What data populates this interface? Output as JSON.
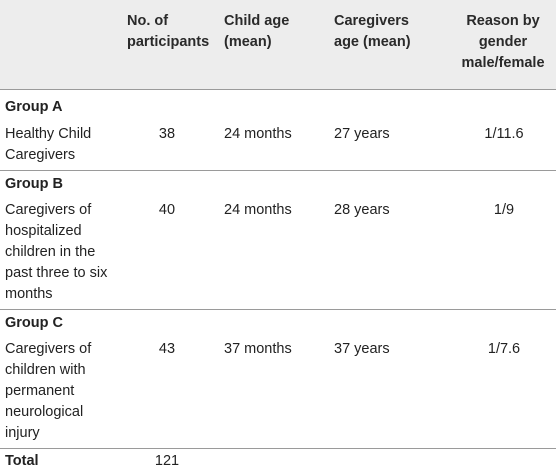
{
  "headers": {
    "participants": "No. of participants",
    "child_age": "Child age (mean)",
    "caregiver_age": "Caregivers age (mean)",
    "ratio": "Reason by gender male/female"
  },
  "groups": [
    {
      "name": "Group A",
      "description": "Healthy Child Caregivers",
      "participants": "38",
      "child_age": "24 months",
      "caregiver_age": "27 years",
      "ratio": "1/11.6"
    },
    {
      "name": "Group B",
      "description": "Caregivers of hospitalized children in the past three to six months",
      "participants": "40",
      "child_age": "24 months",
      "caregiver_age": "28 years",
      "ratio": "1/9"
    },
    {
      "name": "Group C",
      "description": "Caregivers of children with permanent neurological injury",
      "participants": "43",
      "child_age": "37 months",
      "caregiver_age": "37 years",
      "ratio": "1/7.6"
    }
  ],
  "total": {
    "label": "Total",
    "participants": "121"
  }
}
